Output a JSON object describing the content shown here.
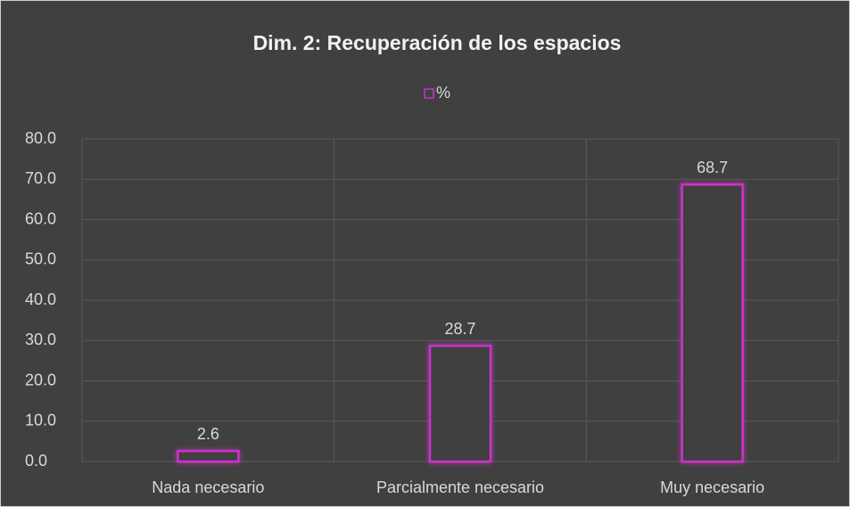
{
  "chart_data": {
    "type": "bar",
    "title": "Dim. 2: Recuperación de los espacios",
    "categories": [
      "Nada necesario",
      "Parcialmente necesario",
      "Muy necesario"
    ],
    "series": [
      {
        "name": "%",
        "color": "#cc33cc",
        "values": [
          2.6,
          28.7,
          68.7
        ]
      }
    ],
    "ylim": [
      0,
      80
    ],
    "yticks": [
      {
        "value": 0,
        "label": "0.0"
      },
      {
        "value": 10,
        "label": "10.0"
      },
      {
        "value": 20,
        "label": "20.0"
      },
      {
        "value": 30,
        "label": "30.0"
      },
      {
        "value": 40,
        "label": "40.0"
      },
      {
        "value": 50,
        "label": "50.0"
      },
      {
        "value": 60,
        "label": "60.0"
      },
      {
        "value": 70,
        "label": "70.0"
      },
      {
        "value": 80,
        "label": "80.0"
      }
    ],
    "grid": true,
    "legend": "top"
  }
}
